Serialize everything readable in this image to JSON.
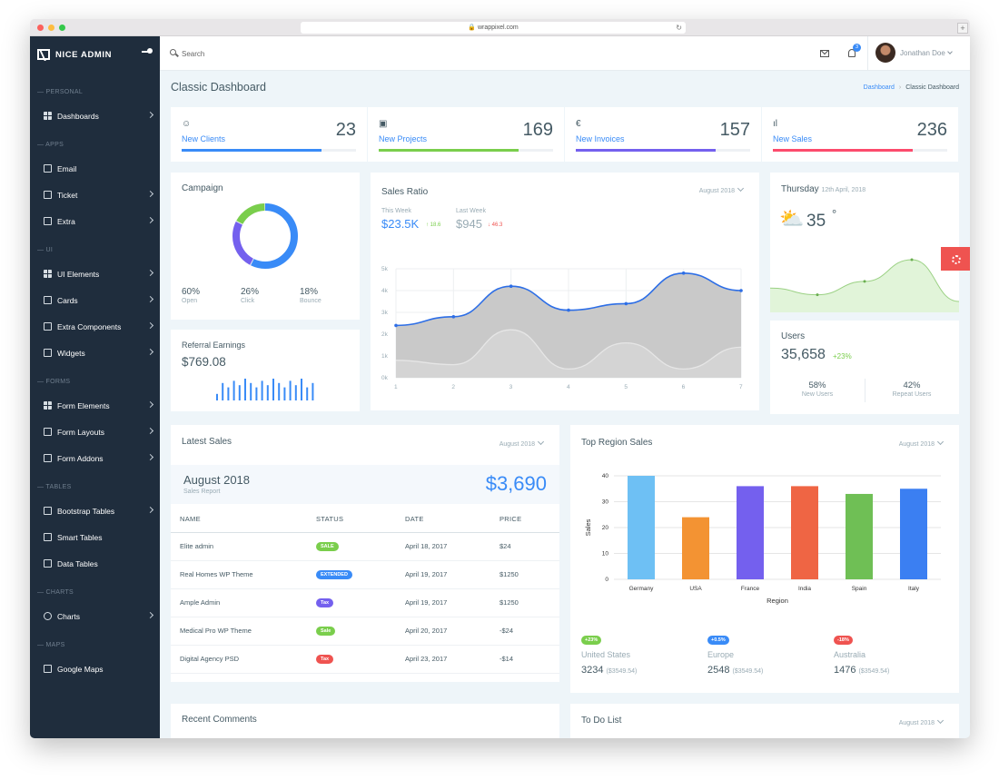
{
  "browser": {
    "url": "wrappixel.com"
  },
  "sidebar": {
    "brand": "NICE ADMIN",
    "sections": [
      {
        "caption": "PERSONAL",
        "items": [
          {
            "label": "Dashboards",
            "icon": "dashboard-icon",
            "chevron": true
          }
        ]
      },
      {
        "caption": "APPS",
        "items": [
          {
            "label": "Email",
            "icon": "email-icon",
            "chevron": false
          },
          {
            "label": "Ticket",
            "icon": "ticket-icon",
            "chevron": true
          },
          {
            "label": "Extra",
            "icon": "extra-icon",
            "chevron": true
          }
        ]
      },
      {
        "caption": "UI",
        "items": [
          {
            "label": "UI Elements",
            "icon": "ui-elements-icon",
            "chevron": true
          },
          {
            "label": "Cards",
            "icon": "cards-icon",
            "chevron": true
          },
          {
            "label": "Extra Components",
            "icon": "extra-components-icon",
            "chevron": true
          },
          {
            "label": "Widgets",
            "icon": "widgets-icon",
            "chevron": true
          }
        ]
      },
      {
        "caption": "FORMS",
        "items": [
          {
            "label": "Form Elements",
            "icon": "form-elements-icon",
            "chevron": true
          },
          {
            "label": "Form Layouts",
            "icon": "form-layouts-icon",
            "chevron": true
          },
          {
            "label": "Form Addons",
            "icon": "form-addons-icon",
            "chevron": true
          }
        ]
      },
      {
        "caption": "TABLES",
        "items": [
          {
            "label": "Bootstrap Tables",
            "icon": "bootstrap-tables-icon",
            "chevron": true
          },
          {
            "label": "Smart Tables",
            "icon": "smart-tables-icon",
            "chevron": false
          },
          {
            "label": "Data Tables",
            "icon": "data-tables-icon",
            "chevron": false
          }
        ]
      },
      {
        "caption": "CHARTS",
        "items": [
          {
            "label": "Charts",
            "icon": "charts-icon",
            "chevron": true
          }
        ]
      },
      {
        "caption": "MAPS",
        "items": [
          {
            "label": "Google Maps",
            "icon": "google-maps-icon",
            "chevron": false
          }
        ]
      }
    ]
  },
  "topbar": {
    "search_placeholder": "Search",
    "notification_count": "3",
    "user_name": "Jonathan Doe"
  },
  "page": {
    "title": "Classic Dashboard",
    "breadcrumb": [
      "Dashboard",
      "Classic Dashboard"
    ]
  },
  "stats": [
    {
      "label": "New Clients",
      "value": "23",
      "icon": "smile-icon",
      "glyph": "☺",
      "color": "#398bf7",
      "progress": 0.8
    },
    {
      "label": "New Projects",
      "value": "169",
      "icon": "image-icon",
      "glyph": "▣",
      "color": "#7ace4c",
      "progress": 0.8
    },
    {
      "label": "New Invoices",
      "value": "157",
      "icon": "euro-icon",
      "glyph": "€",
      "color": "#7460ee",
      "progress": 0.8
    },
    {
      "label": "New Sales",
      "value": "236",
      "icon": "bar-chart-icon",
      "glyph": "ıl",
      "color": "#fc4b6c",
      "progress": 0.8
    }
  ],
  "campaign": {
    "title": "Campaign",
    "segments": [
      {
        "value": "60%",
        "label": "Open",
        "pct": 60,
        "color": "#398bf7"
      },
      {
        "value": "26%",
        "label": "Click",
        "pct": 26,
        "color": "#7460ee"
      },
      {
        "value": "18%",
        "label": "Bounce",
        "pct": 18,
        "color": "#7ace4c"
      }
    ]
  },
  "referral": {
    "title": "Referral Earnings",
    "amount": "$769.08",
    "bars": [
      3,
      8,
      6,
      9,
      7,
      10,
      8,
      6,
      9,
      7,
      10,
      8,
      6,
      9,
      7,
      10,
      6,
      8
    ]
  },
  "sales_ratio": {
    "title": "Sales Ratio",
    "period": "August 2018",
    "this_week": {
      "label": "This Week",
      "value": "$23.5K",
      "change": "↑ 18.6"
    },
    "last_week": {
      "label": "Last Week",
      "value": "$945",
      "change": "↓ 46.3"
    }
  },
  "weather": {
    "day": "Thursday",
    "date": "12th April, 2018",
    "temp": "35",
    "unit": "°",
    "trend": [
      18,
      14,
      22,
      35,
      10
    ]
  },
  "users": {
    "title": "Users",
    "count": "35,658",
    "change": "+23%",
    "split": [
      {
        "value": "58%",
        "label": "New Users"
      },
      {
        "value": "42%",
        "label": "Repeat Users"
      }
    ]
  },
  "latest_sales": {
    "title": "Latest Sales",
    "period": "August 2018",
    "report_month": "August 2018",
    "report_label": "Sales Report",
    "total": "$3,690",
    "columns": [
      "NAME",
      "STATUS",
      "DATE",
      "PRICE"
    ],
    "rows": [
      {
        "name": "Elite admin",
        "status": "SALE",
        "status_color": "#7ace4c",
        "date": "April 18, 2017",
        "price": "$24"
      },
      {
        "name": "Real Homes WP Theme",
        "status": "EXTENDED",
        "status_color": "#398bf7",
        "date": "April 19, 2017",
        "price": "$1250"
      },
      {
        "name": "Ample Admin",
        "status": "Tax",
        "status_color": "#7460ee",
        "date": "April 19, 2017",
        "price": "$1250"
      },
      {
        "name": "Medical Pro WP Theme",
        "status": "Sale",
        "status_color": "#7ace4c",
        "date": "April 20, 2017",
        "price": "-$24"
      },
      {
        "name": "Digital Agency PSD",
        "status": "Tax",
        "status_color": "#ef5350",
        "date": "April 23, 2017",
        "price": "-$14"
      }
    ]
  },
  "top_region": {
    "title": "Top Region Sales",
    "period": "August 2018",
    "regions": [
      {
        "change": "+23%",
        "color": "#7ace4c",
        "name": "United States",
        "value": "3234",
        "sub": "($3549.54)"
      },
      {
        "change": "+0.5%",
        "color": "#398bf7",
        "name": "Europe",
        "value": "2548",
        "sub": "($3549.54)"
      },
      {
        "change": "-18%",
        "color": "#ef5350",
        "name": "Australia",
        "value": "1476",
        "sub": "($3549.54)"
      }
    ]
  },
  "bottom": {
    "recent_comments": "Recent Comments",
    "todo": "To Do List",
    "todo_period": "August 2018"
  },
  "chart_data": [
    {
      "type": "area",
      "x": [
        1,
        2,
        3,
        4,
        5,
        6,
        7
      ],
      "series": [
        {
          "values": [
            2.4,
            2.8,
            4.2,
            3.1,
            3.4,
            4.8,
            4.0
          ],
          "color": "#2d6ee6"
        },
        {
          "values": [
            0.8,
            0.6,
            2.2,
            0.4,
            1.6,
            0.4,
            1.4
          ],
          "color": "#e6e6e6"
        }
      ],
      "yticks": [
        "0k",
        "1k",
        "2k",
        "3k",
        "4k",
        "5k"
      ],
      "ylim": [
        0,
        5
      ],
      "grid": true
    },
    {
      "type": "bar",
      "categories": [
        "Germany",
        "USA",
        "France",
        "India",
        "Spain",
        "Italy"
      ],
      "values": [
        40,
        24,
        36,
        36,
        33,
        35
      ],
      "colors": [
        "#6ec0f4",
        "#f39333",
        "#7460ee",
        "#ef6544",
        "#6fbf55",
        "#3b7ff2"
      ],
      "xlabel": "Region",
      "ylabel": "Sales",
      "ylim": [
        0,
        40
      ],
      "yticks": [
        0,
        10,
        20,
        30,
        40
      ],
      "grid": true
    }
  ]
}
